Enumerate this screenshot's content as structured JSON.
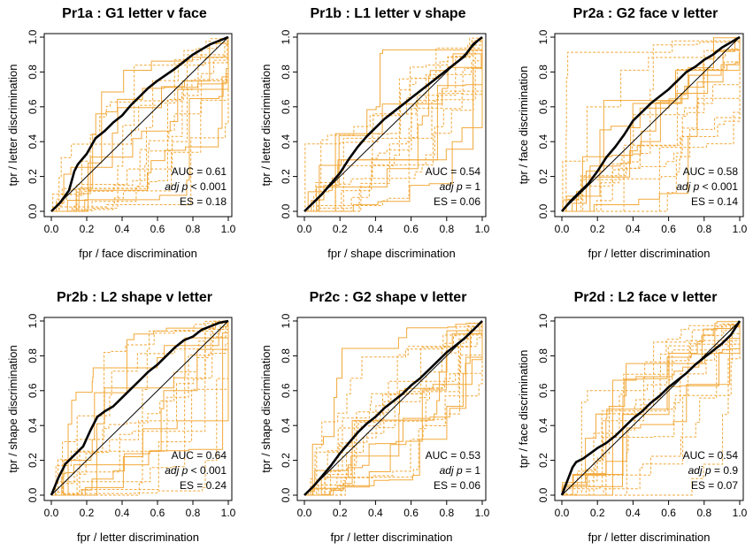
{
  "colors": {
    "subject_curve": "#f2a93b",
    "mean_curve": "#000000",
    "diagonal": "#000000"
  },
  "chart_data": [
    {
      "type": "line",
      "panel": "Pr1a",
      "title": "Pr1a   :   G1 letter v face",
      "title_code": "Pr1a",
      "title_label": "G1 letter v face",
      "xlabel": "fpr /  face discrimination",
      "ylabel": "tpr /  letter discrimination",
      "xlim": [
        0,
        1
      ],
      "ylim": [
        0,
        1
      ],
      "xticks": [
        "0.0",
        "0.2",
        "0.4",
        "0.6",
        "0.8",
        "1.0"
      ],
      "yticks": [
        "0.0",
        "0.2",
        "0.4",
        "0.6",
        "0.8",
        "1.0"
      ],
      "stats": {
        "auc": "AUC =  0.61",
        "adjp_label": "adj p",
        "adjp_value": "< 0.001",
        "es": "ES =  0.18"
      },
      "mean_curve": {
        "x": [
          0,
          0.05,
          0.1,
          0.13,
          0.15,
          0.2,
          0.25,
          0.3,
          0.35,
          0.4,
          0.45,
          0.5,
          0.55,
          0.6,
          0.7,
          0.8,
          0.85,
          0.9,
          0.95,
          1
        ],
        "y": [
          0,
          0.05,
          0.12,
          0.23,
          0.27,
          0.33,
          0.42,
          0.46,
          0.51,
          0.55,
          0.61,
          0.66,
          0.71,
          0.75,
          0.82,
          0.9,
          0.93,
          0.96,
          0.98,
          1
        ]
      }
    },
    {
      "type": "line",
      "panel": "Pr1b",
      "title": "Pr1b   :   L1 letter v shape",
      "title_code": "Pr1b",
      "title_label": "L1 letter v shape",
      "xlabel": "fpr /  shape discrimination",
      "ylabel": "tpr /  letter discrimination",
      "xlim": [
        0,
        1
      ],
      "ylim": [
        0,
        1
      ],
      "xticks": [
        "0.0",
        "0.2",
        "0.4",
        "0.6",
        "0.8",
        "1.0"
      ],
      "yticks": [
        "0.0",
        "0.2",
        "0.4",
        "0.6",
        "0.8",
        "1.0"
      ],
      "stats": {
        "auc": "AUC =  0.54",
        "adjp_label": "adj p",
        "adjp_value": "=  1",
        "es": "ES =  0.06"
      },
      "mean_curve": {
        "x": [
          0,
          0.05,
          0.1,
          0.15,
          0.2,
          0.25,
          0.3,
          0.35,
          0.4,
          0.45,
          0.5,
          0.55,
          0.6,
          0.7,
          0.8,
          0.9,
          0.95,
          1
        ],
        "y": [
          0,
          0.05,
          0.1,
          0.16,
          0.22,
          0.3,
          0.37,
          0.43,
          0.48,
          0.53,
          0.57,
          0.61,
          0.65,
          0.73,
          0.81,
          0.89,
          0.96,
          1
        ]
      }
    },
    {
      "type": "line",
      "panel": "Pr2a",
      "title": "Pr2a   :   G2 face v letter",
      "title_code": "Pr2a",
      "title_label": "G2 face v letter",
      "xlabel": "fpr /  letter discrimination",
      "ylabel": "tpr /  face discrimination",
      "xlim": [
        0,
        1
      ],
      "ylim": [
        0,
        1
      ],
      "xticks": [
        "0.0",
        "0.2",
        "0.4",
        "0.6",
        "0.8",
        "1.0"
      ],
      "yticks": [
        "0.0",
        "0.2",
        "0.4",
        "0.6",
        "0.8",
        "1.0"
      ],
      "stats": {
        "auc": "AUC =  0.58",
        "adjp_label": "adj p",
        "adjp_value": "< 0.001",
        "es": "ES =  0.14"
      },
      "mean_curve": {
        "x": [
          0,
          0.05,
          0.1,
          0.15,
          0.2,
          0.25,
          0.3,
          0.35,
          0.4,
          0.45,
          0.5,
          0.55,
          0.6,
          0.65,
          0.7,
          0.75,
          0.8,
          0.85,
          0.9,
          0.95,
          1
        ],
        "y": [
          0,
          0.06,
          0.11,
          0.16,
          0.23,
          0.31,
          0.37,
          0.44,
          0.52,
          0.57,
          0.62,
          0.66,
          0.7,
          0.75,
          0.8,
          0.83,
          0.87,
          0.9,
          0.94,
          0.97,
          1
        ]
      }
    },
    {
      "type": "line",
      "panel": "Pr2b",
      "title": "Pr2b   :   L2 shape v letter",
      "title_code": "Pr2b",
      "title_label": "L2 shape v letter",
      "xlabel": "fpr /  letter discrimination",
      "ylabel": "tpr /  shape discrimination",
      "xlim": [
        0,
        1
      ],
      "ylim": [
        0,
        1
      ],
      "xticks": [
        "0.0",
        "0.2",
        "0.4",
        "0.6",
        "0.8",
        "1.0"
      ],
      "yticks": [
        "0.0",
        "0.2",
        "0.4",
        "0.6",
        "0.8",
        "1.0"
      ],
      "stats": {
        "auc": "AUC =  0.64",
        "adjp_label": "adj p",
        "adjp_value": "< 0.001",
        "es": "ES =  0.24"
      },
      "mean_curve": {
        "x": [
          0,
          0.02,
          0.04,
          0.08,
          0.12,
          0.18,
          0.22,
          0.26,
          0.3,
          0.35,
          0.4,
          0.45,
          0.5,
          0.55,
          0.6,
          0.65,
          0.7,
          0.75,
          0.8,
          0.85,
          0.9,
          0.95,
          1
        ],
        "y": [
          0,
          0.05,
          0.1,
          0.18,
          0.22,
          0.28,
          0.37,
          0.45,
          0.48,
          0.51,
          0.56,
          0.61,
          0.66,
          0.71,
          0.75,
          0.8,
          0.85,
          0.89,
          0.91,
          0.95,
          0.97,
          0.99,
          1
        ]
      }
    },
    {
      "type": "line",
      "panel": "Pr2c",
      "title": "Pr2c   :   G2 shape v letter",
      "title_code": "Pr2c",
      "title_label": "G2 shape v letter",
      "xlabel": "fpr /  letter discrimination",
      "ylabel": "tpr /  shape discrimination",
      "xlim": [
        0,
        1
      ],
      "ylim": [
        0,
        1
      ],
      "xticks": [
        "0.0",
        "0.2",
        "0.4",
        "0.6",
        "0.8",
        "1.0"
      ],
      "yticks": [
        "0.0",
        "0.2",
        "0.4",
        "0.6",
        "0.8",
        "1.0"
      ],
      "stats": {
        "auc": "AUC =  0.53",
        "adjp_label": "adj p",
        "adjp_value": "=  1",
        "es": "ES =  0.06"
      },
      "mean_curve": {
        "x": [
          0,
          0.05,
          0.1,
          0.15,
          0.2,
          0.25,
          0.3,
          0.35,
          0.4,
          0.45,
          0.5,
          0.55,
          0.6,
          0.65,
          0.7,
          0.75,
          0.8,
          0.85,
          0.9,
          0.95,
          1
        ],
        "y": [
          0,
          0.05,
          0.11,
          0.17,
          0.24,
          0.3,
          0.36,
          0.41,
          0.45,
          0.5,
          0.54,
          0.58,
          0.63,
          0.67,
          0.72,
          0.77,
          0.82,
          0.86,
          0.9,
          0.95,
          1
        ]
      }
    },
    {
      "type": "line",
      "panel": "Pr2d",
      "title": "Pr2d   :   L2 face v letter",
      "title_code": "Pr2d",
      "title_label": "L2 face v letter",
      "xlabel": "fpr /  letter discrimination",
      "ylabel": "tpr /  face discrimination",
      "xlim": [
        0,
        1
      ],
      "ylim": [
        0,
        1
      ],
      "xticks": [
        "0.0",
        "0.2",
        "0.4",
        "0.6",
        "0.8",
        "1.0"
      ],
      "yticks": [
        "0.0",
        "0.2",
        "0.4",
        "0.6",
        "0.8",
        "1.0"
      ],
      "stats": {
        "auc": "AUC =  0.54",
        "adjp_label": "adj p",
        "adjp_value": "=  0.9",
        "es": "ES =  0.07"
      },
      "mean_curve": {
        "x": [
          0,
          0.03,
          0.06,
          0.08,
          0.12,
          0.16,
          0.2,
          0.25,
          0.3,
          0.35,
          0.4,
          0.45,
          0.5,
          0.55,
          0.6,
          0.65,
          0.7,
          0.75,
          0.8,
          0.85,
          0.9,
          0.95,
          1
        ],
        "y": [
          0,
          0.08,
          0.16,
          0.19,
          0.21,
          0.24,
          0.27,
          0.3,
          0.34,
          0.39,
          0.44,
          0.48,
          0.53,
          0.57,
          0.62,
          0.66,
          0.7,
          0.75,
          0.79,
          0.83,
          0.87,
          0.92,
          1
        ]
      }
    }
  ]
}
